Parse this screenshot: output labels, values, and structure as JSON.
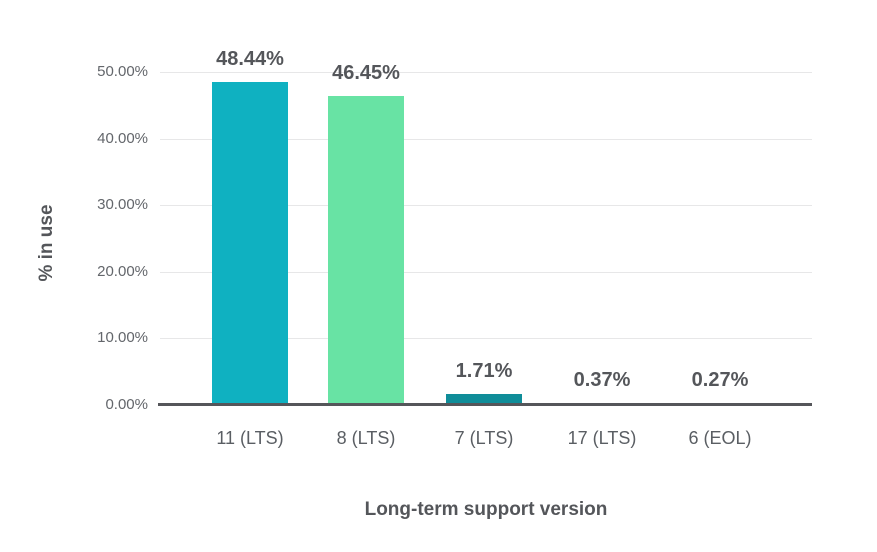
{
  "chart_data": {
    "type": "bar",
    "title": "",
    "xlabel": "Long-term support version",
    "ylabel": "% in use",
    "categories": [
      "11 (LTS)",
      "8 (LTS)",
      "7 (LTS)",
      "17 (LTS)",
      "6 (EOL)"
    ],
    "values": [
      48.44,
      46.45,
      1.71,
      0.37,
      0.27
    ],
    "value_labels": [
      "48.44%",
      "46.45%",
      "1.71%",
      "0.37%",
      "0.27%"
    ],
    "bar_colors": [
      "#0fb1c1",
      "#68e3a4",
      "#0f8d99",
      "#f75e09",
      "#f3a83b"
    ],
    "ylim": [
      0,
      50
    ],
    "yticks": [
      0,
      10,
      20,
      30,
      40,
      50
    ],
    "ytick_labels": [
      "0.00%",
      "10.00%",
      "20.00%",
      "30.00%",
      "40.00%",
      "50.00%"
    ],
    "grid": true,
    "legend": "none",
    "background": "#ffffff",
    "axis_line_color": "#55565a",
    "gridline_color": "#e7e7e8",
    "text_colors": {
      "axis_title": "#54565a",
      "tick_label": "#63666b",
      "data_label": "#54565a",
      "category_label": "#5a5e63"
    }
  }
}
